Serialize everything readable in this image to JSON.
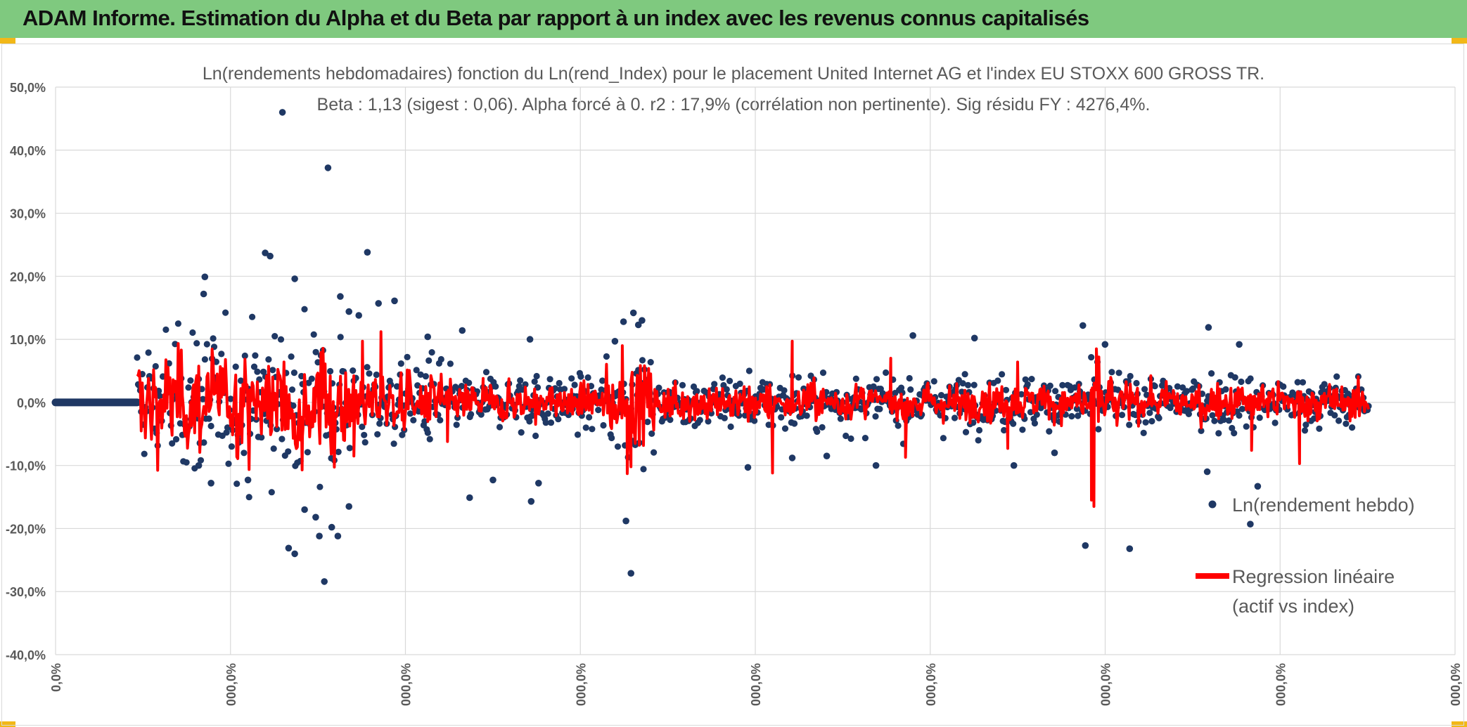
{
  "banner": {
    "title": "ADAM Informe. Estimation du Alpha et du Beta par rapport à un index avec les revenus connus capitalisés"
  },
  "colors": {
    "banner": "#7fc97f",
    "corner": "#f2b818",
    "points": "#1f3864",
    "regression": "#ff0000",
    "grid": "#d9d9d9",
    "axis_text": "#595959"
  },
  "chart_data": {
    "type": "scatter",
    "title": "Ln(rendements hebdomadaires) fonction du Ln(rend_Index) pour le placement United Internet AG et l'index EU STOXX 600 GROSS TR.",
    "subtitle": "Beta : 1,13 (sigest : 0,06). Alpha forcé à 0. r2 : 17,9% (corrélation non pertinente). Sig résidu FY : 4276,4%.",
    "ylim": [
      -0.4,
      0.5
    ],
    "yticks": [
      "-40,0%",
      "-30,0%",
      "-20,0%",
      "-10,0%",
      "0,0%",
      "10,0%",
      "20,0%",
      "30,0%",
      "40,0%",
      "50,0%"
    ],
    "xticks": [
      "0,0%",
      "000,0%",
      "000,0%",
      "000,0%",
      "000,0%",
      "000,0%",
      "000,0%",
      "000,0%",
      "000,0%"
    ],
    "grid": true,
    "legend_position": "right",
    "series": [
      {
        "name": "Ln(rendement hebdo)",
        "kind": "points"
      },
      {
        "name": "Regression linéaire (actif vs index)",
        "kind": "line"
      }
    ],
    "legend": {
      "points_label": "Ln(rendement hebdo)",
      "line_label_1": "Regression linéaire",
      "line_label_2": "(actif vs index)"
    },
    "outliers": [
      {
        "t": 0.118,
        "y": 0.46
      },
      {
        "t": 0.155,
        "y": 0.372
      },
      {
        "t": 0.165,
        "y": 0.168
      },
      {
        "t": 0.104,
        "y": 0.237
      },
      {
        "t": 0.108,
        "y": 0.232
      },
      {
        "t": 0.187,
        "y": 0.238
      },
      {
        "t": 0.128,
        "y": 0.196
      },
      {
        "t": 0.055,
        "y": 0.199
      },
      {
        "t": 0.054,
        "y": 0.172
      },
      {
        "t": 0.152,
        "y": -0.284
      },
      {
        "t": 0.128,
        "y": -0.24
      },
      {
        "t": 0.123,
        "y": -0.231
      },
      {
        "t": 0.148,
        "y": -0.212
      },
      {
        "t": 0.163,
        "y": -0.212
      },
      {
        "t": 0.158,
        "y": -0.198
      },
      {
        "t": 0.145,
        "y": -0.182
      },
      {
        "t": 0.136,
        "y": -0.17
      },
      {
        "t": 0.172,
        "y": -0.165
      },
      {
        "t": 0.09,
        "y": -0.123
      },
      {
        "t": 0.06,
        "y": -0.128
      },
      {
        "t": 0.05,
        "y": -0.1
      },
      {
        "t": 0.401,
        "y": -0.271
      },
      {
        "t": 0.397,
        "y": -0.188
      },
      {
        "t": 0.395,
        "y": 0.128
      },
      {
        "t": 0.403,
        "y": 0.142
      },
      {
        "t": 0.41,
        "y": 0.13
      },
      {
        "t": 0.407,
        "y": 0.123
      },
      {
        "t": 0.27,
        "y": -0.151
      },
      {
        "t": 0.326,
        "y": -0.128
      },
      {
        "t": 0.32,
        "y": -0.157
      },
      {
        "t": 0.289,
        "y": -0.123
      },
      {
        "t": 0.77,
        "y": -0.227
      },
      {
        "t": 0.806,
        "y": -0.232
      },
      {
        "t": 0.904,
        "y": -0.193
      },
      {
        "t": 0.91,
        "y": -0.133
      },
      {
        "t": 0.869,
        "y": -0.11
      },
      {
        "t": 0.768,
        "y": 0.122
      },
      {
        "t": 0.87,
        "y": 0.119
      },
      {
        "t": 0.209,
        "y": 0.161
      },
      {
        "t": 0.196,
        "y": 0.157
      },
      {
        "t": 0.172,
        "y": 0.144
      },
      {
        "t": 0.18,
        "y": 0.138
      },
      {
        "t": 0.264,
        "y": 0.114
      },
      {
        "t": 0.63,
        "y": 0.106
      },
      {
        "t": 0.68,
        "y": 0.102
      },
      {
        "t": 0.786,
        "y": 0.092
      },
      {
        "t": 0.895,
        "y": 0.092
      },
      {
        "t": 0.236,
        "y": 0.104
      },
      {
        "t": 0.319,
        "y": 0.1
      },
      {
        "t": 0.388,
        "y": 0.097
      },
      {
        "t": 0.6,
        "y": -0.1
      },
      {
        "t": 0.496,
        "y": -0.103
      },
      {
        "t": 0.532,
        "y": -0.088
      },
      {
        "t": 0.56,
        "y": -0.085
      },
      {
        "t": 0.712,
        "y": -0.1
      },
      {
        "t": 0.745,
        "y": -0.08
      }
    ],
    "regression_spikes": [
      {
        "t": 0.198,
        "y": 0.112
      },
      {
        "t": 0.183,
        "y": 0.097
      },
      {
        "t": 0.176,
        "y": -0.085
      },
      {
        "t": 0.134,
        "y": -0.107
      },
      {
        "t": 0.157,
        "y": -0.055
      },
      {
        "t": 0.398,
        "y": -0.113
      },
      {
        "t": 0.394,
        "y": 0.09
      },
      {
        "t": 0.401,
        "y": -0.102
      },
      {
        "t": 0.516,
        "y": -0.112
      },
      {
        "t": 0.532,
        "y": 0.097
      },
      {
        "t": 0.777,
        "y": -0.165
      },
      {
        "t": 0.775,
        "y": -0.155
      },
      {
        "t": 0.779,
        "y": 0.085
      },
      {
        "t": 0.781,
        "y": 0.072
      },
      {
        "t": 0.944,
        "y": -0.097
      },
      {
        "t": 0.624,
        "y": -0.087
      },
      {
        "t": 0.707,
        "y": -0.073
      },
      {
        "t": 0.715,
        "y": 0.064
      },
      {
        "t": 0.252,
        "y": -0.062
      },
      {
        "t": 0.281,
        "y": 0.038
      },
      {
        "t": 0.905,
        "y": -0.076
      },
      {
        "t": 0.612,
        "y": 0.07
      }
    ]
  }
}
